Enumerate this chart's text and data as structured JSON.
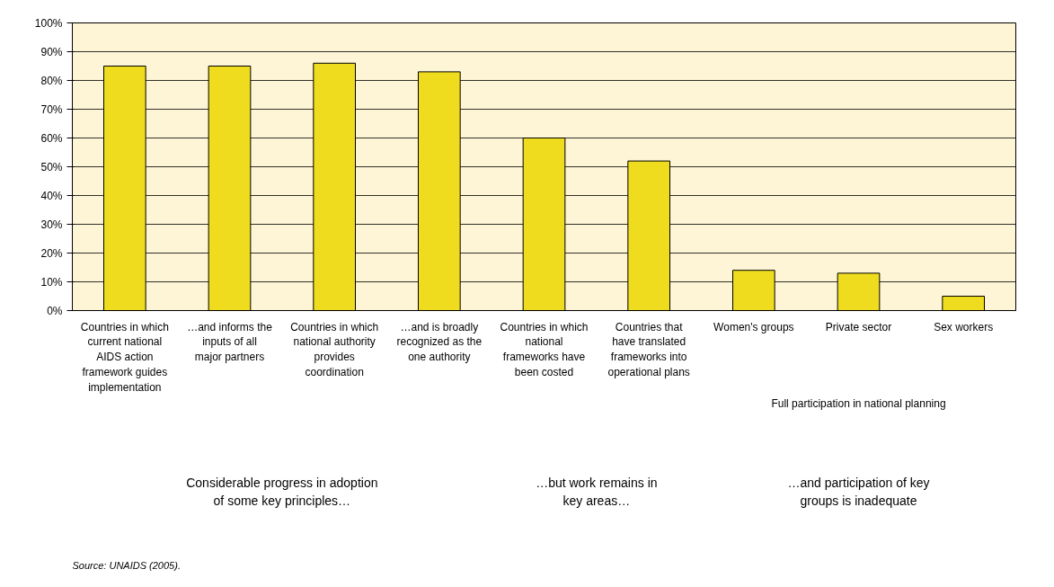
{
  "chart_data": {
    "type": "bar",
    "categories": [
      "Countries in which current national AIDS action framework guides implementation",
      "…and informs the inputs of all major partners",
      "Countries in which national authority provides coordination",
      "…and is broadly recognized as the one authority",
      "Countries in which national frameworks have been costed",
      "Countries that have translated frameworks into operational plans",
      "Women's groups",
      "Private sector",
      "Sex workers"
    ],
    "values": [
      85,
      85,
      86,
      83,
      60,
      52,
      14,
      13,
      5
    ],
    "color": "#efdc1f",
    "ylim": [
      0,
      100
    ],
    "yticks": [
      {
        "value": 0,
        "label": "0%"
      },
      {
        "value": 10,
        "label": "10%"
      },
      {
        "value": 20,
        "label": "20%"
      },
      {
        "value": 30,
        "label": "30%"
      },
      {
        "value": 40,
        "label": "40%"
      },
      {
        "value": 50,
        "label": "50%"
      },
      {
        "value": 60,
        "label": "60%"
      },
      {
        "value": 70,
        "label": "70%"
      },
      {
        "value": 80,
        "label": "80%"
      },
      {
        "value": 90,
        "label": "90%"
      },
      {
        "value": 100,
        "label": "100%"
      }
    ],
    "grid": "y",
    "annotations": [
      "Full participation in national planning",
      "Considerable progress in adoption\nof some key principles…",
      "…but work remains in\nkey areas…",
      "…and participation of key\ngroups is inadequate",
      "Source: UNAIDS (2005)."
    ]
  }
}
